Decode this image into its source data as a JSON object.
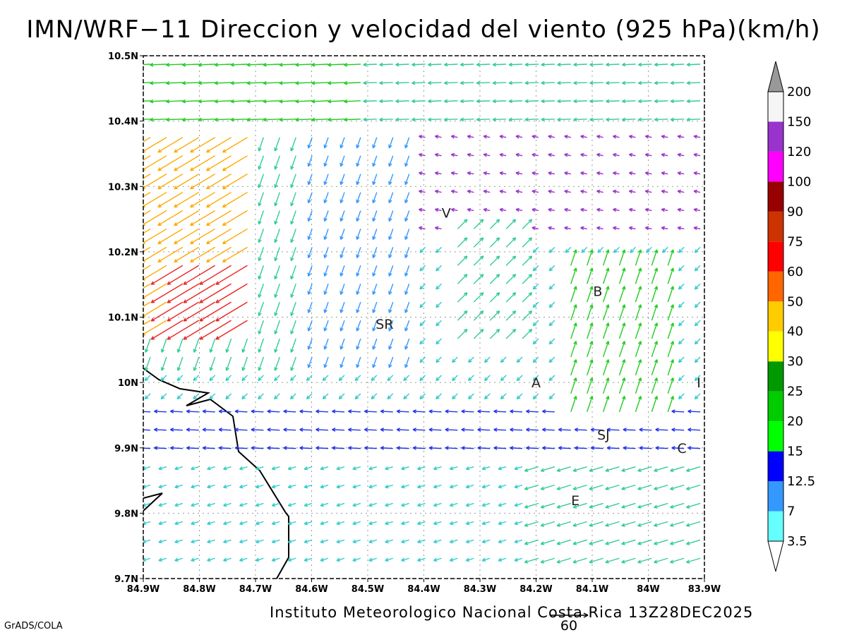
{
  "title": "IMN/WRF−11 Direccion y velocidad del viento (925 hPa)(km/h)",
  "footer": "Instituto Meteorologico Nacional Costa Rica 13Z28DEC2025",
  "software_label": "GrADS/COLA",
  "reference_vector_label": "60",
  "x_ticks": [
    "84.9W",
    "84.8W",
    "84.7W",
    "84.6W",
    "84.5W",
    "84.4W",
    "84.3W",
    "84.2W",
    "84.1W",
    "84W",
    "83.9W"
  ],
  "y_ticks": [
    "9.7N",
    "9.8N",
    "9.9N",
    "10N",
    "10.1N",
    "10.2N",
    "10.3N",
    "10.4N",
    "10.5N"
  ],
  "extent": {
    "lon_min": -84.9,
    "lon_max": -83.9,
    "lat_min": 9.7,
    "lat_max": 10.5
  },
  "places": [
    {
      "label": "V",
      "lon": -84.36,
      "lat": 10.26
    },
    {
      "label": "SR",
      "lon": -84.47,
      "lat": 10.09
    },
    {
      "label": "B",
      "lon": -84.09,
      "lat": 10.14
    },
    {
      "label": "A",
      "lon": -84.2,
      "lat": 10.0
    },
    {
      "label": "I",
      "lon": -83.91,
      "lat": 10.0
    },
    {
      "label": "SJ",
      "lon": -84.08,
      "lat": 9.92
    },
    {
      "label": "C",
      "lon": -83.94,
      "lat": 9.9
    },
    {
      "label": "E",
      "lon": -84.13,
      "lat": 9.82
    }
  ],
  "colorbar": {
    "labels": [
      "3.5",
      "7",
      "12.5",
      "15",
      "20",
      "25",
      "30",
      "40",
      "50",
      "60",
      "75",
      "90",
      "100",
      "120",
      "150",
      "200"
    ],
    "colors": [
      "#ffffff",
      "#66ffff",
      "#3399ff",
      "#0000ff",
      "#00ff00",
      "#00cc00",
      "#009900",
      "#ffff00",
      "#ffcc00",
      "#ff6600",
      "#ff0000",
      "#cc3300",
      "#990000",
      "#ff00ff",
      "#9933cc",
      "#f5f5f5",
      "#999999"
    ]
  },
  "chart_data": {
    "type": "wind_vector_map",
    "level": "925 hPa",
    "units": "km/h",
    "grid_on": true,
    "regions": [
      {
        "name": "north_easterly_band",
        "lat_range": [
          10.38,
          10.5
        ],
        "direction": "from E",
        "speed_kmh": 20
      },
      {
        "name": "northwest_strong",
        "lon_range": [
          -84.9,
          -84.7
        ],
        "lat_range": [
          10.1,
          10.32
        ],
        "direction": "from NE",
        "speed_kmh": 55
      },
      {
        "name": "central_northerly",
        "lon_range": [
          -84.7,
          -84.4
        ],
        "lat_range": [
          10.05,
          10.3
        ],
        "direction": "from N",
        "speed_kmh": 12
      },
      {
        "name": "southern_easterly",
        "lat_range": [
          9.7,
          9.96
        ],
        "direction": "from E",
        "speed_kmh": 10
      }
    ]
  }
}
